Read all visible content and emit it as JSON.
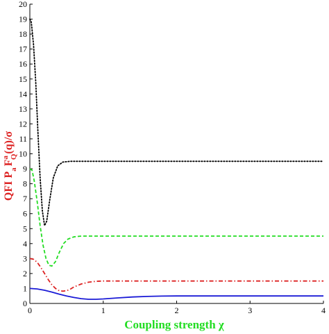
{
  "chart_data": {
    "type": "line",
    "xlabel": "Coupling strength χ",
    "ylabel_main": "QFI P",
    "ylabel_sub_a": "a",
    "ylabel_F": "F",
    "ylabel_sup_a": "a",
    "ylabel_sub_Q": "Q",
    "ylabel_tail": "(q)/σ",
    "xlim": [
      0,
      4
    ],
    "ylim": [
      0,
      20
    ],
    "xticks": [
      0,
      1,
      2,
      3,
      4
    ],
    "yticks": [
      0,
      1,
      2,
      3,
      4,
      5,
      6,
      7,
      8,
      9,
      10,
      11,
      12,
      13,
      14,
      15,
      16,
      17,
      18,
      19,
      20
    ],
    "grid": false,
    "series": [
      {
        "color": "#000000",
        "style": "dotted",
        "x": [
          0,
          0.02,
          0.05,
          0.08,
          0.11,
          0.14,
          0.17,
          0.2,
          0.23,
          0.27,
          0.32,
          0.38,
          0.45,
          0.55,
          0.7,
          1.0,
          2.0,
          3.0,
          4.0
        ],
        "y": [
          19.0,
          18.8,
          17.3,
          14.8,
          11.5,
          8.4,
          6.2,
          5.2,
          5.5,
          6.9,
          8.4,
          9.2,
          9.45,
          9.5,
          9.5,
          9.5,
          9.5,
          9.5,
          9.5
        ]
      },
      {
        "color": "#22dd22",
        "style": "dashed",
        "x": [
          0,
          0.03,
          0.06,
          0.1,
          0.14,
          0.18,
          0.22,
          0.26,
          0.3,
          0.35,
          0.4,
          0.46,
          0.52,
          0.6,
          0.7,
          0.85,
          1.0,
          2.0,
          3.0,
          4.0
        ],
        "y": [
          9.0,
          8.9,
          8.2,
          6.8,
          5.2,
          3.9,
          3.0,
          2.55,
          2.5,
          2.8,
          3.4,
          4.0,
          4.3,
          4.45,
          4.5,
          4.5,
          4.5,
          4.5,
          4.5,
          4.5
        ]
      },
      {
        "color": "#dd2222",
        "style": "dashdot",
        "x": [
          0,
          0.05,
          0.1,
          0.15,
          0.2,
          0.25,
          0.3,
          0.35,
          0.4,
          0.45,
          0.5,
          0.55,
          0.6,
          0.7,
          0.8,
          0.9,
          1.0,
          1.2,
          1.5,
          2.0,
          3.0,
          4.0
        ],
        "y": [
          3.0,
          2.95,
          2.75,
          2.4,
          2.0,
          1.6,
          1.25,
          1.0,
          0.85,
          0.82,
          0.85,
          0.95,
          1.1,
          1.3,
          1.42,
          1.48,
          1.5,
          1.5,
          1.5,
          1.5,
          1.5,
          1.5
        ]
      },
      {
        "color": "#1a1ad6",
        "style": "solid",
        "x": [
          0,
          0.1,
          0.2,
          0.3,
          0.4,
          0.5,
          0.6,
          0.7,
          0.8,
          0.9,
          1.0,
          1.2,
          1.4,
          1.6,
          1.8,
          2.0,
          2.5,
          3.0,
          3.5,
          4.0
        ],
        "y": [
          1.0,
          0.97,
          0.88,
          0.76,
          0.62,
          0.5,
          0.4,
          0.32,
          0.28,
          0.28,
          0.3,
          0.37,
          0.43,
          0.47,
          0.49,
          0.5,
          0.5,
          0.5,
          0.5,
          0.5
        ]
      }
    ]
  },
  "colors": {
    "axis": "#000000",
    "xlabel": "#22dd22",
    "ylabel": "#dd2222"
  }
}
